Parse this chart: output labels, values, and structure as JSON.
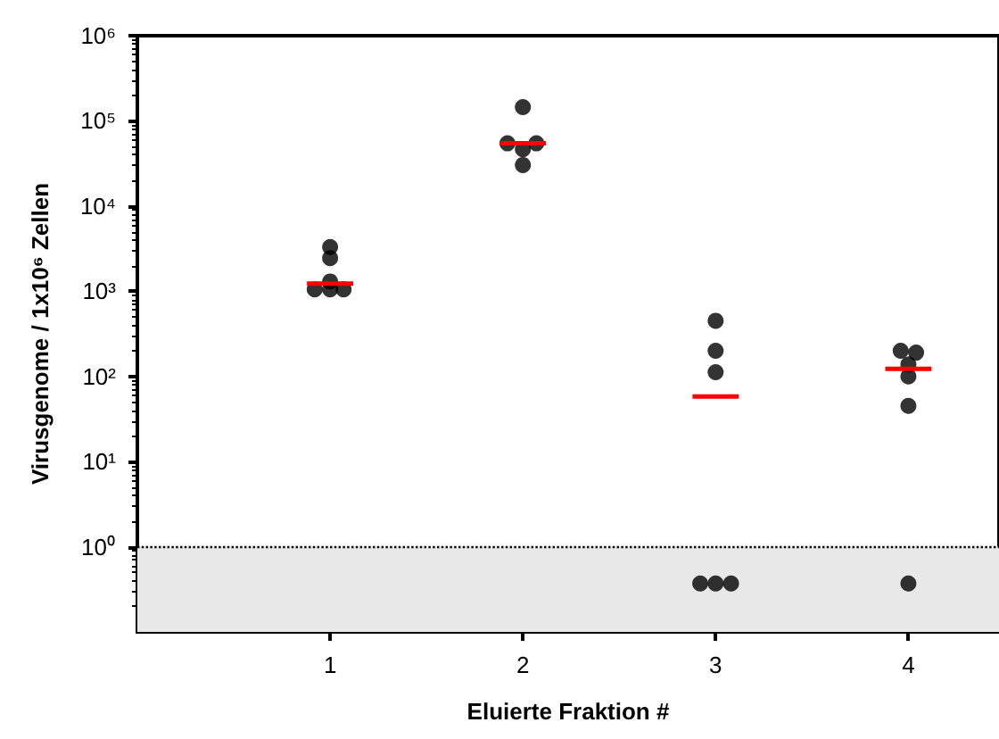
{
  "chart_data": {
    "type": "scatter",
    "xlabel": "Eluierte Fraktion #",
    "ylabel": "Virusgenome / 1x10⁶ Zellen",
    "log": "y",
    "grid": false,
    "marker": "circle",
    "xlim": [
      0,
      4.47
    ],
    "xticks": [
      1,
      2,
      3,
      4
    ],
    "ylim": [
      0.1,
      1000000
    ],
    "yticks": [
      {
        "value": 1,
        "label": "10⁰"
      },
      {
        "value": 10,
        "label": "10¹"
      },
      {
        "value": 100,
        "label": "10²"
      },
      {
        "value": 1000,
        "label": "10³"
      },
      {
        "value": 10000,
        "label": "10⁴"
      },
      {
        "value": 100000,
        "label": "10⁵"
      },
      {
        "value": 1000000,
        "label": "10⁶"
      }
    ],
    "ref_lines": [
      {
        "axis": "y",
        "value": 1,
        "line_style": "dotted",
        "color": "#000000"
      }
    ],
    "bands": [
      {
        "axis": "y",
        "from": 0.1,
        "to": 1,
        "color": "#e8e8e8"
      }
    ],
    "series": [
      {
        "color": "#000000",
        "x": [
          0.92,
          1.0,
          1.07,
          1.0,
          1.0,
          1.0,
          1.92,
          2.07,
          2.0,
          2.0,
          2.0,
          2.92,
          3.0,
          3.08,
          3.0,
          3.0,
          3.0,
          4.0,
          4.0,
          4.0,
          4.0,
          3.96,
          4.04
        ],
        "values": [
          1050,
          1050,
          1050,
          1300,
          2450,
          3300,
          54500,
          54500,
          46500,
          30300,
          145000,
          0.37,
          0.37,
          0.37,
          112,
          200,
          450,
          0.37,
          45,
          100,
          138,
          200,
          190
        ]
      },
      {
        "type": "line",
        "color": "#ff0000",
        "marker": "none",
        "line_style": "solid",
        "x": [
          0.88,
          1.12,
          1.5,
          1.88,
          2.12,
          2.5,
          2.88,
          3.12,
          3.5,
          3.88,
          4.12
        ],
        "values": [
          1230,
          1230,
          null,
          54500,
          54500,
          null,
          58,
          58,
          null,
          123,
          123
        ]
      }
    ]
  }
}
